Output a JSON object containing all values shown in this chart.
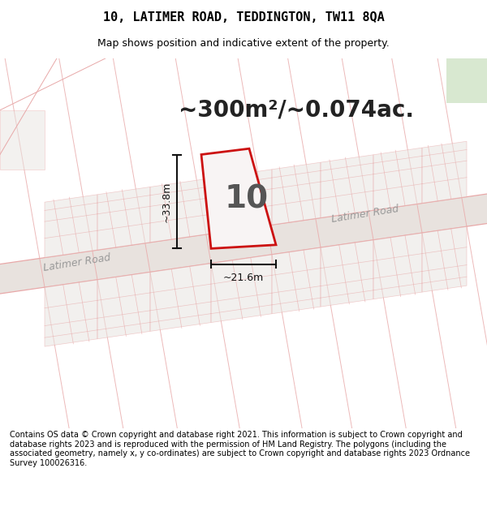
{
  "title": "10, LATIMER ROAD, TEDDINGTON, TW11 8QA",
  "subtitle": "Map shows position and indicative extent of the property.",
  "area_text": "~300m²/~0.074ac.",
  "property_label": "10",
  "dim_width": "~21.6m",
  "dim_height": "~33.8m",
  "road_label": "Latimer Road",
  "footer": "Contains OS data © Crown copyright and database right 2021. This information is subject to Crown copyright and database rights 2023 and is reproduced with the permission of HM Land Registry. The polygons (including the associated geometry, namely x, y co-ordinates) are subject to Crown copyright and database rights 2023 Ordnance Survey 100026316.",
  "map_bg": "#f7f4f2",
  "road_band_color": "#e8e2de",
  "line_color": "#e8a8a8",
  "block_fill": "#e8e4e0",
  "property_outline_color": "#cc1111",
  "property_fill": "#f8f4f4",
  "park_color": "#d8e8d0",
  "dim_color": "#111111",
  "area_color": "#222222",
  "label_color": "#555555",
  "road_text_color": "#999999",
  "title_fontsize": 11,
  "subtitle_fontsize": 9,
  "area_fontsize": 20,
  "property_fontsize": 28,
  "footer_fontsize": 7,
  "road_label_fontsize": 9,
  "dim_fontsize": 9
}
